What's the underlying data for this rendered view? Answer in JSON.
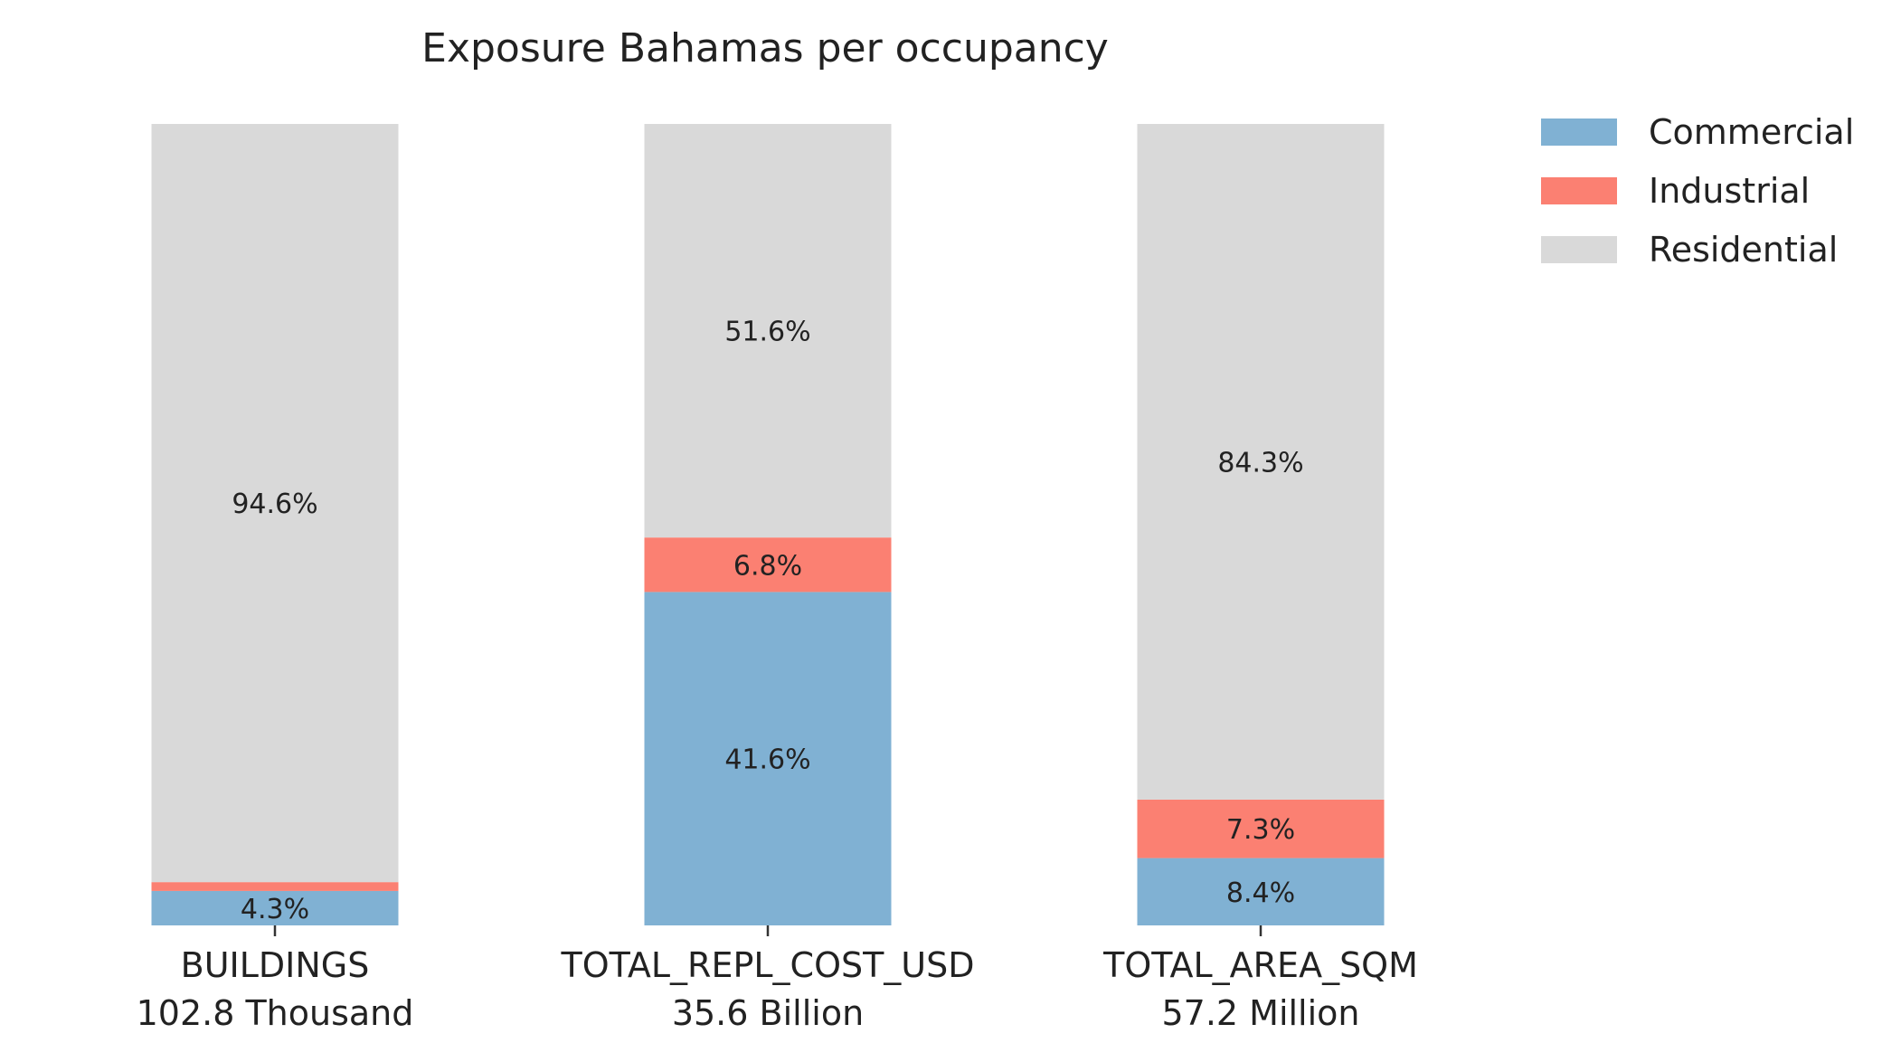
{
  "chart_data": {
    "type": "bar",
    "stacked": true,
    "normalized_percent": true,
    "title": "Exposure Bahamas per occupancy",
    "categories": [
      "BUILDINGS",
      "TOTAL_REPL_COST_USD",
      "TOTAL_AREA_SQM"
    ],
    "category_totals": [
      "102.8 Thousand",
      "35.6 Billion",
      "57.2 Million"
    ],
    "ylim": [
      0,
      100
    ],
    "grid": false,
    "legend_position": "top-right",
    "series": [
      {
        "name": "Commercial",
        "color": "#80b1d3",
        "values": [
          4.3,
          41.6,
          8.4
        ],
        "labels": [
          "4.3%",
          "41.6%",
          "8.4%"
        ]
      },
      {
        "name": "Industrial",
        "color": "#fb8072",
        "values": [
          1.1,
          6.8,
          7.3
        ],
        "labels": [
          "",
          "6.8%",
          "7.3%"
        ]
      },
      {
        "name": "Residential",
        "color": "#d9d9d9",
        "values": [
          94.6,
          51.6,
          84.3
        ],
        "labels": [
          "94.6%",
          "51.6%",
          "84.3%"
        ]
      }
    ]
  }
}
